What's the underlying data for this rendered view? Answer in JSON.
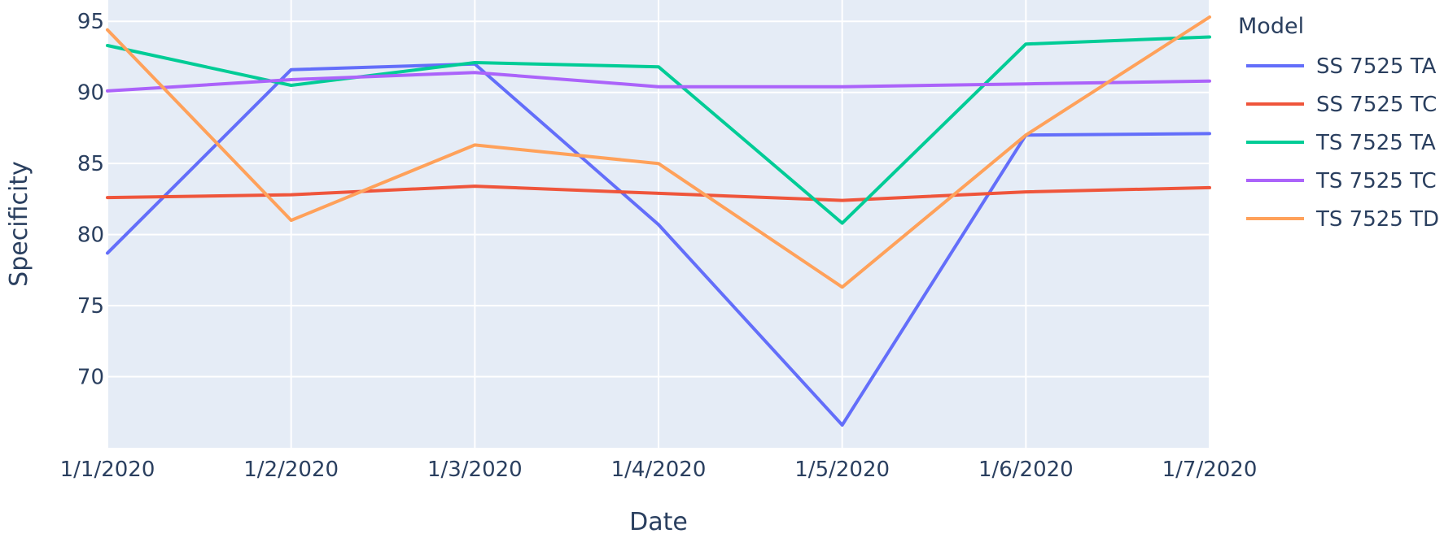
{
  "chart_data": {
    "type": "line",
    "xlabel": "Date",
    "ylabel": "Specificity",
    "x": [
      "1/1/2020",
      "1/2/2020",
      "1/3/2020",
      "1/4/2020",
      "1/5/2020",
      "1/6/2020",
      "1/7/2020"
    ],
    "ylim": [
      65,
      96.5
    ],
    "yticks": [
      70,
      75,
      80,
      85,
      90,
      95
    ],
    "grid": true,
    "plot_background": "#e5ecf6",
    "legend": {
      "title": "Model",
      "position": "right"
    },
    "series": [
      {
        "name": "SS 7525 TA",
        "color": "#636efa",
        "values": [
          78.7,
          91.6,
          92.0,
          80.7,
          66.6,
          87.0,
          87.1
        ]
      },
      {
        "name": "SS 7525 TC",
        "color": "#ef553b",
        "values": [
          82.6,
          82.8,
          83.4,
          82.9,
          82.4,
          83.0,
          83.3
        ]
      },
      {
        "name": "TS 7525 TA",
        "color": "#00cc96",
        "values": [
          93.3,
          90.5,
          92.1,
          91.8,
          80.8,
          93.4,
          93.9
        ]
      },
      {
        "name": "TS 7525 TC",
        "color": "#ab63fa",
        "values": [
          90.1,
          90.9,
          91.4,
          90.4,
          90.4,
          90.6,
          90.8
        ]
      },
      {
        "name": "TS 7525 TD",
        "color": "#ffa15a",
        "values": [
          94.4,
          81.0,
          86.3,
          85.0,
          76.3,
          87.0,
          95.3
        ]
      }
    ]
  }
}
